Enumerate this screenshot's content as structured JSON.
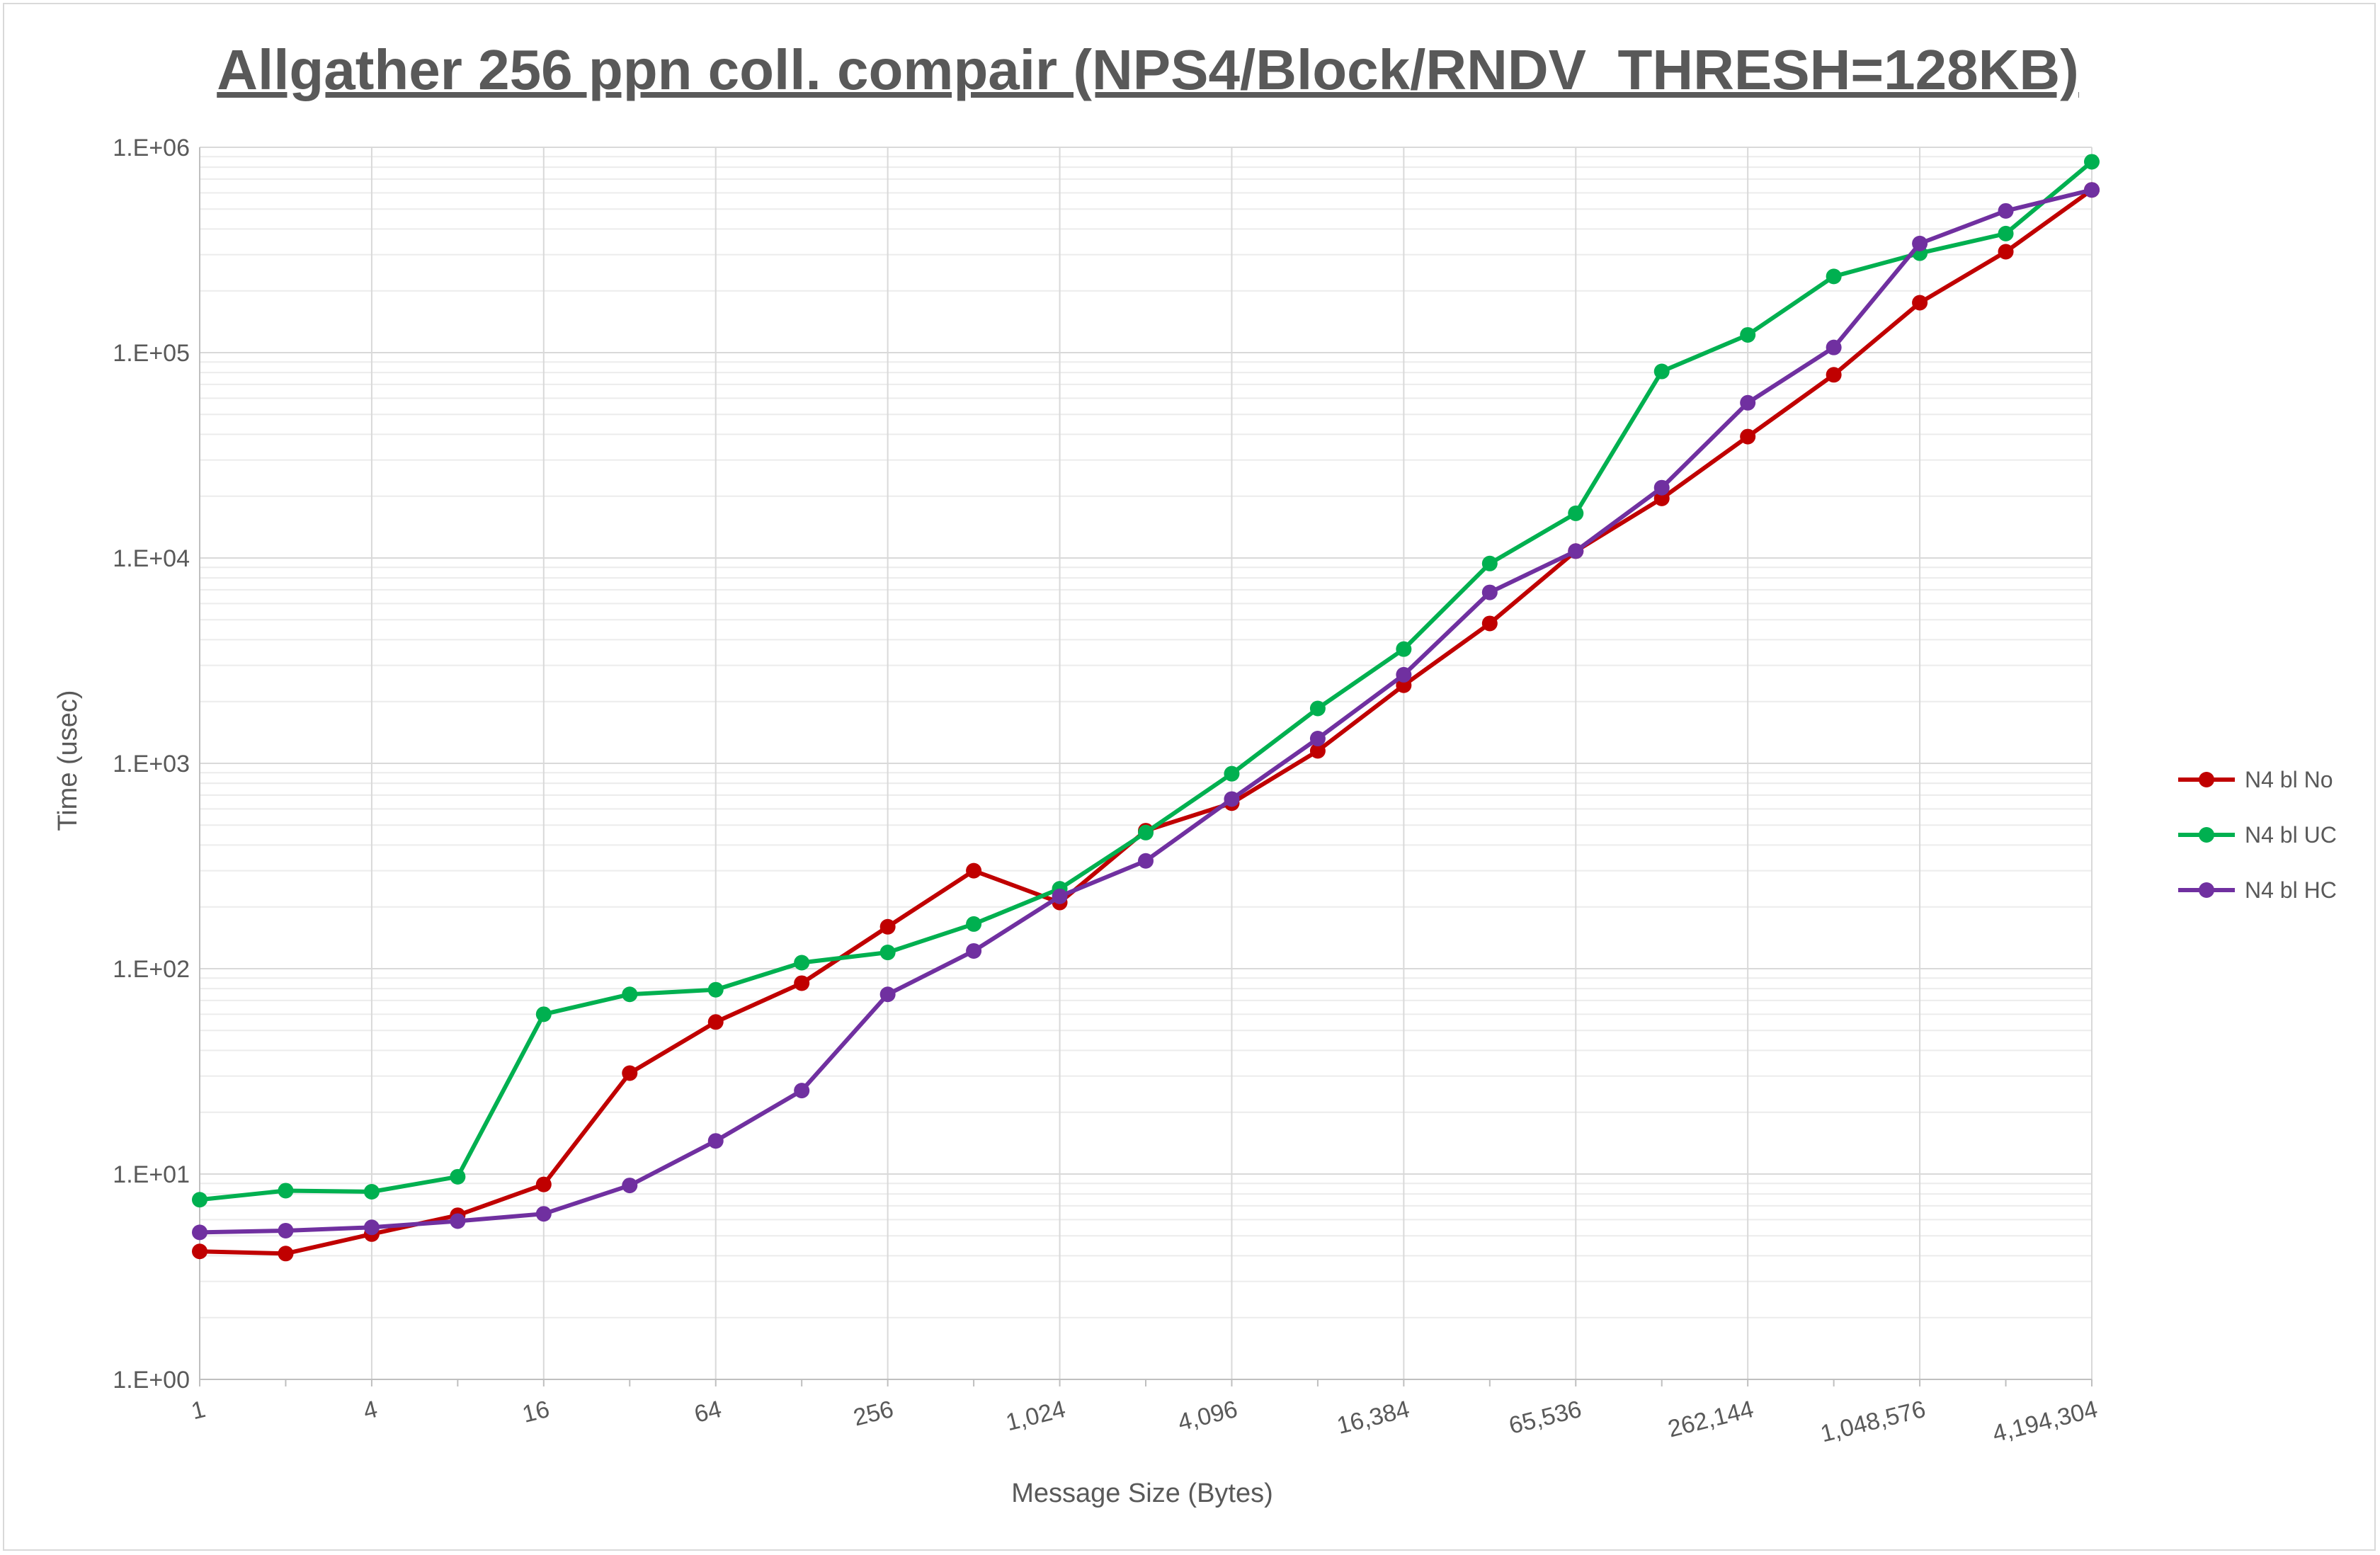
{
  "chart_data": {
    "type": "line",
    "title": "Allgather 256 ppn coll. compair (NPS4/Block/RNDV_THRESH=128KB)",
    "xlabel": "Message Size (Bytes)",
    "ylabel": "Time (usec)",
    "y_scale": "log",
    "ylim": [
      1,
      1000000
    ],
    "y_tick_labels": [
      "1.E+00",
      "1.E+01",
      "1.E+02",
      "1.E+03",
      "1.E+04",
      "1.E+05",
      "1.E+06"
    ],
    "x": [
      1,
      2,
      4,
      8,
      16,
      32,
      64,
      128,
      256,
      512,
      1024,
      2048,
      4096,
      8192,
      16384,
      32768,
      65536,
      131072,
      262144,
      524288,
      1048576,
      2097152,
      4194304
    ],
    "x_tick_labels": [
      "1",
      "4",
      "16",
      "64",
      "256",
      "1,024",
      "4,096",
      "16,384",
      "65,536",
      "262,144",
      "1,048,576",
      "4,194,304"
    ],
    "grid": true,
    "legend_position": "right",
    "series": [
      {
        "name": "N4 bl No",
        "color": "#c00000",
        "values": [
          4.2,
          4.1,
          5.1,
          6.3,
          8.9,
          31,
          55,
          85,
          160,
          300,
          210,
          470,
          640,
          1150,
          2400,
          4800,
          10800,
          19500,
          39000,
          78000,
          175000,
          310000,
          620000
        ]
      },
      {
        "name": "N4 bl UC",
        "color": "#00b050",
        "values": [
          7.5,
          8.3,
          8.2,
          9.7,
          60,
          75,
          79,
          107,
          120,
          165,
          245,
          460,
          890,
          1850,
          3600,
          9400,
          16500,
          81000,
          122000,
          235000,
          305000,
          380000,
          850000
        ]
      },
      {
        "name": "N4 bl HC",
        "color": "#7030a0",
        "values": [
          5.2,
          5.3,
          5.5,
          5.9,
          6.4,
          8.8,
          14.5,
          25.5,
          75,
          122,
          225,
          335,
          670,
          1320,
          2700,
          6800,
          10800,
          22000,
          57000,
          106000,
          340000,
          490000,
          620000
        ]
      }
    ]
  }
}
